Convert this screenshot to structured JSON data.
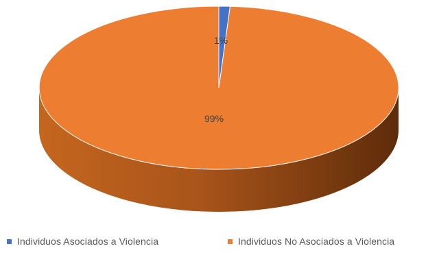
{
  "chart_data": {
    "type": "pie",
    "categories": [
      "Individuos Asociados a Violencia",
      "Individuos No Asociados a Violencia"
    ],
    "values": [
      1,
      99
    ],
    "data_labels": [
      "1%",
      "99%"
    ],
    "colors": [
      "#4472C4",
      "#ED7D31"
    ],
    "legend_position": "bottom",
    "style": "3d"
  }
}
